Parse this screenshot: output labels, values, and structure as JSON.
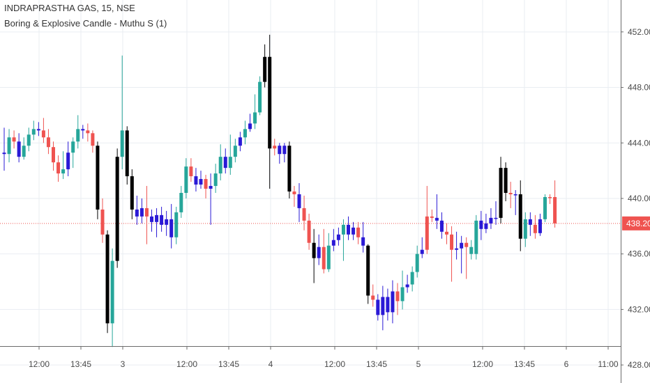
{
  "chart_title": "INDRAPRASTHA GAS, 15, NSE",
  "indicator": "Boring & Explosive Candle - Muthu S (1)",
  "last_price": "438.20",
  "colors": {
    "bull": "#26a69a",
    "bear": "#ef5350",
    "explosive": "#000000",
    "boring": "#2a19d6",
    "grid": "#e9edf2",
    "price_line": "#ef5350",
    "axis_text": "#4a4a4a"
  },
  "chart_data": {
    "type": "candlestick",
    "y_ticks": [
      "452.00",
      "448.00",
      "444.00",
      "440.00",
      "436.00",
      "432.00",
      "428.00"
    ],
    "x_ticks": [
      "12:00",
      "13:45",
      "3",
      "12:00",
      "13:45",
      "4",
      "12:00",
      "13:45",
      "5",
      "12:00",
      "13:45",
      "6",
      "11:00"
    ],
    "ylim": [
      426.7,
      454.3
    ],
    "current_price": 438.2,
    "candles": [
      [
        443.3,
        443.2,
        445.1,
        442.0,
        "boring"
      ],
      [
        443.2,
        444.4,
        445.0,
        442.6,
        "bull"
      ],
      [
        444.4,
        444.1,
        444.9,
        443.6,
        "bear"
      ],
      [
        444.1,
        443.0,
        444.7,
        442.6,
        "boring"
      ],
      [
        443.0,
        443.8,
        444.4,
        442.8,
        "bull"
      ],
      [
        443.8,
        444.6,
        445.1,
        443.4,
        "bull"
      ],
      [
        444.6,
        445.0,
        445.6,
        444.2,
        "bull"
      ],
      [
        445.0,
        444.9,
        445.5,
        444.5,
        "boring"
      ],
      [
        444.9,
        444.4,
        445.8,
        444.0,
        "bear"
      ],
      [
        444.4,
        443.7,
        445.0,
        443.2,
        "bear"
      ],
      [
        443.7,
        442.6,
        444.1,
        442.0,
        "bear"
      ],
      [
        442.6,
        441.8,
        443.1,
        441.2,
        "bear"
      ],
      [
        441.8,
        442.1,
        443.4,
        441.4,
        "bull"
      ],
      [
        442.1,
        443.3,
        444.1,
        441.6,
        "boring"
      ],
      [
        443.3,
        444.1,
        444.4,
        442.2,
        "bull"
      ],
      [
        444.1,
        445.0,
        446.0,
        443.6,
        "bull"
      ],
      [
        445.0,
        444.9,
        445.3,
        444.3,
        "boring"
      ],
      [
        444.9,
        444.7,
        445.4,
        444.1,
        "bear"
      ],
      [
        444.7,
        443.8,
        444.9,
        443.3,
        "bear"
      ],
      [
        443.8,
        439.2,
        444.1,
        438.5,
        "explosive"
      ],
      [
        439.2,
        437.4,
        440.0,
        436.8,
        "bear"
      ],
      [
        437.4,
        431.0,
        437.7,
        430.3,
        "explosive"
      ],
      [
        431.0,
        435.5,
        436.4,
        429.3,
        "bull"
      ],
      [
        435.5,
        443.0,
        443.6,
        435.0,
        "explosive"
      ],
      [
        443.0,
        444.9,
        450.3,
        442.1,
        "bull"
      ],
      [
        444.9,
        441.6,
        445.2,
        441.0,
        "explosive"
      ],
      [
        441.6,
        439.2,
        442.1,
        438.5,
        "explosive"
      ],
      [
        439.2,
        438.7,
        440.2,
        438.1,
        "boring"
      ],
      [
        438.7,
        439.3,
        440.0,
        438.2,
        "boring"
      ],
      [
        439.3,
        438.7,
        440.9,
        436.7,
        "bear"
      ],
      [
        438.7,
        438.3,
        439.2,
        437.6,
        "boring"
      ],
      [
        438.3,
        438.8,
        439.3,
        437.2,
        "boring"
      ],
      [
        438.8,
        438.1,
        439.4,
        437.6,
        "boring"
      ],
      [
        438.1,
        438.5,
        439.1,
        437.3,
        "boring"
      ],
      [
        438.5,
        437.2,
        439.6,
        436.4,
        "boring"
      ],
      [
        437.2,
        439.0,
        439.4,
        436.7,
        "bull"
      ],
      [
        439.0,
        440.4,
        440.9,
        438.6,
        "bull"
      ],
      [
        440.4,
        442.3,
        442.9,
        440.0,
        "bull"
      ],
      [
        442.3,
        441.6,
        442.9,
        441.2,
        "bear"
      ],
      [
        441.6,
        441.0,
        442.2,
        440.5,
        "boring"
      ],
      [
        441.0,
        441.4,
        442.0,
        440.7,
        "boring"
      ],
      [
        441.4,
        440.7,
        441.7,
        440.0,
        "bear"
      ],
      [
        440.7,
        440.9,
        441.8,
        438.1,
        "boring"
      ],
      [
        440.9,
        441.8,
        442.5,
        440.4,
        "bull"
      ],
      [
        441.8,
        443.0,
        443.9,
        441.3,
        "bull"
      ],
      [
        443.0,
        442.2,
        443.6,
        441.8,
        "boring"
      ],
      [
        442.2,
        443.0,
        444.6,
        441.7,
        "bull"
      ],
      [
        443.0,
        443.8,
        444.3,
        442.6,
        "bull"
      ],
      [
        443.8,
        444.4,
        444.8,
        443.4,
        "boring"
      ],
      [
        444.4,
        445.0,
        445.6,
        443.9,
        "bull"
      ],
      [
        445.0,
        445.4,
        446.1,
        444.8,
        "boring"
      ],
      [
        445.4,
        446.2,
        447.5,
        445.0,
        "bull"
      ],
      [
        446.2,
        448.4,
        448.8,
        446.0,
        "bull"
      ],
      [
        448.4,
        450.2,
        451.1,
        448.0,
        "explosive"
      ],
      [
        450.2,
        443.6,
        451.8,
        440.7,
        "explosive"
      ],
      [
        443.6,
        443.8,
        444.3,
        443.1,
        "bear"
      ],
      [
        443.8,
        443.2,
        444.0,
        442.5,
        "boring"
      ],
      [
        443.2,
        443.8,
        444.0,
        442.6,
        "boring"
      ],
      [
        443.8,
        440.5,
        444.1,
        440.0,
        "explosive"
      ],
      [
        440.5,
        440.3,
        440.9,
        439.4,
        "bear"
      ],
      [
        440.3,
        439.3,
        441.1,
        438.3,
        "boring"
      ],
      [
        439.3,
        438.4,
        440.2,
        437.7,
        "bear"
      ],
      [
        438.4,
        436.8,
        438.9,
        436.3,
        "bear"
      ],
      [
        436.8,
        435.7,
        437.8,
        433.9,
        "explosive"
      ],
      [
        435.7,
        436.5,
        437.4,
        435.2,
        "boring"
      ],
      [
        436.5,
        434.9,
        437.8,
        434.6,
        "bear"
      ],
      [
        434.9,
        436.6,
        437.5,
        434.7,
        "bull"
      ],
      [
        436.6,
        437.0,
        437.8,
        436.2,
        "boring"
      ],
      [
        437.0,
        437.4,
        437.9,
        436.6,
        "boring"
      ],
      [
        437.4,
        438.1,
        438.5,
        435.5,
        "bull"
      ],
      [
        438.1,
        437.4,
        438.7,
        437.0,
        "boring"
      ],
      [
        437.4,
        437.9,
        438.3,
        437.0,
        "boring"
      ],
      [
        437.9,
        437.2,
        438.3,
        436.7,
        "bear"
      ],
      [
        437.2,
        436.6,
        438.3,
        436.1,
        "boring"
      ],
      [
        436.6,
        433.0,
        436.7,
        432.4,
        "explosive"
      ],
      [
        433.0,
        432.7,
        433.8,
        432.2,
        "bear"
      ],
      [
        432.7,
        431.6,
        433.1,
        431.2,
        "boring"
      ],
      [
        431.6,
        432.9,
        433.7,
        430.5,
        "boring"
      ],
      [
        432.9,
        431.8,
        433.5,
        431.2,
        "boring"
      ],
      [
        431.8,
        433.3,
        434.1,
        431.0,
        "boring"
      ],
      [
        433.3,
        432.6,
        433.9,
        431.6,
        "bear"
      ],
      [
        432.6,
        433.6,
        434.8,
        432.0,
        "bull"
      ],
      [
        433.6,
        433.8,
        434.5,
        433.2,
        "boring"
      ],
      [
        433.8,
        434.7,
        435.1,
        433.3,
        "bull"
      ],
      [
        434.7,
        436.0,
        436.6,
        434.3,
        "bull"
      ],
      [
        436.0,
        436.3,
        437.2,
        435.7,
        "boring"
      ],
      [
        436.3,
        438.7,
        440.9,
        436.0,
        "bear"
      ],
      [
        438.7,
        438.6,
        439.2,
        438.3,
        "bear"
      ],
      [
        438.6,
        438.4,
        440.3,
        437.8,
        "boring"
      ],
      [
        438.4,
        437.6,
        439.0,
        437.1,
        "boring"
      ],
      [
        437.6,
        437.4,
        438.2,
        436.7,
        "bear"
      ],
      [
        437.4,
        436.3,
        438.0,
        434.0,
        "bear"
      ],
      [
        436.3,
        436.4,
        437.6,
        435.6,
        "boring"
      ],
      [
        436.4,
        436.8,
        437.3,
        434.6,
        "boring"
      ],
      [
        436.8,
        436.5,
        437.2,
        434.2,
        "bear"
      ],
      [
        436.5,
        436.0,
        437.0,
        435.6,
        "bull"
      ],
      [
        436.0,
        438.4,
        438.8,
        435.6,
        "bull"
      ],
      [
        438.4,
        437.8,
        439.1,
        437.0,
        "boring"
      ],
      [
        437.8,
        438.2,
        438.9,
        437.5,
        "boring"
      ],
      [
        438.2,
        438.6,
        439.3,
        437.8,
        "boring"
      ],
      [
        438.6,
        438.6,
        439.8,
        438.1,
        "boring"
      ],
      [
        438.6,
        442.2,
        443.0,
        438.2,
        "explosive"
      ],
      [
        442.2,
        440.4,
        442.6,
        439.8,
        "explosive"
      ],
      [
        440.4,
        440.3,
        441.2,
        439.3,
        "bear"
      ],
      [
        440.3,
        440.3,
        440.6,
        438.8,
        "boring"
      ],
      [
        440.3,
        437.1,
        441.3,
        436.2,
        "explosive"
      ],
      [
        437.1,
        438.5,
        439.0,
        436.5,
        "bull"
      ],
      [
        438.5,
        438.1,
        439.0,
        437.3,
        "boring"
      ],
      [
        438.1,
        437.5,
        438.8,
        437.1,
        "bear"
      ],
      [
        437.5,
        438.5,
        438.9,
        437.3,
        "boring"
      ],
      [
        438.5,
        440.1,
        440.3,
        438.3,
        "bull"
      ],
      [
        440.1,
        440.1,
        440.3,
        439.6,
        "bear"
      ],
      [
        440.1,
        438.2,
        441.3,
        437.9,
        "bear"
      ]
    ]
  }
}
